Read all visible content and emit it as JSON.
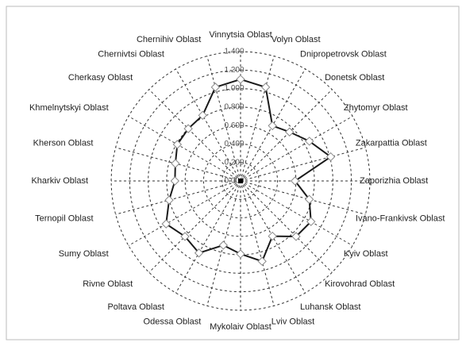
{
  "chart_data": {
    "type": "radar",
    "categories": [
      "Vinnytsia Oblast",
      "Volyn Oblast",
      "Dnipropetrovsk Oblast",
      "Donetsk Oblast",
      "Zhytomyr Oblast",
      "Zakarpattia Oblast",
      "Zaporizhia Oblast",
      "Ivano-Frankivsk Oblast",
      "Kyiv Oblast",
      "Kirovohrad Oblast",
      "Luhansk Oblast",
      "Lviv Oblast",
      "Mykolaiv Oblast",
      "Odessa Oblast",
      "Poltava Oblast",
      "Rivne Oblast",
      "Sumy Oblast",
      "Ternopil Oblast",
      "Kharkiv Oblast",
      "Kherson Oblast",
      "Khmelnytskyi Oblast",
      "Cherkasy Oblast",
      "Chernivtsi Oblast",
      "Chernihiv Oblast"
    ],
    "values": [
      1.1,
      1.05,
      0.69,
      0.75,
      0.86,
      1.01,
      0.59,
      0.77,
      0.88,
      0.85,
      0.69,
      0.9,
      0.79,
      0.72,
      0.9,
      0.85,
      0.93,
      0.8,
      0.71,
      0.73,
      0.79,
      0.8,
      0.82,
      1.05
    ],
    "color": "#1a1a1a",
    "ylim": [
      0,
      1.4
    ],
    "yticks": [
      {
        "value": 0,
        "label": "0.000"
      },
      {
        "value": 0.2,
        "label": "0.200"
      },
      {
        "value": 0.4,
        "label": "0.400"
      },
      {
        "value": 0.6,
        "label": "0.600"
      },
      {
        "value": 0.8,
        "label": "0.800"
      },
      {
        "value": 1.0,
        "label": "1.000"
      },
      {
        "value": 1.2,
        "label": "1.200"
      },
      {
        "value": 1.4,
        "label": "1.400"
      }
    ],
    "grid": true
  }
}
